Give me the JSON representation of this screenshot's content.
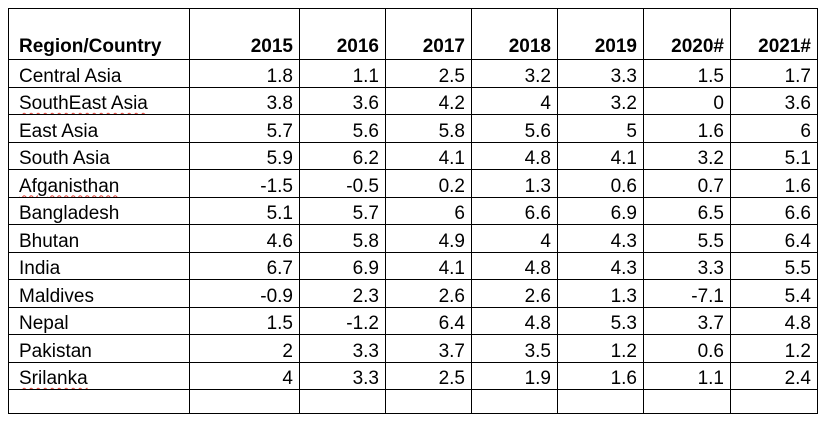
{
  "table": {
    "headers": [
      "Region/Country",
      "2015",
      "2016",
      "2017",
      "2018",
      "2019",
      "2020#",
      "2021#"
    ],
    "rows": [
      {
        "name": "Central Asia",
        "values": [
          "1.8",
          "1.1",
          "2.5",
          "3.2",
          "3.3",
          "1.5",
          "1.7"
        ]
      },
      {
        "name": "SouthEast Asia",
        "values": [
          "3.8",
          "3.6",
          "4.2",
          "4",
          "3.2",
          "0",
          "3.6"
        ]
      },
      {
        "name": "East Asia",
        "values": [
          "5.7",
          "5.6",
          "5.8",
          "5.6",
          "5",
          "1.6",
          "6"
        ]
      },
      {
        "name": "South Asia",
        "values": [
          "5.9",
          "6.2",
          "4.1",
          "4.8",
          "4.1",
          "3.2",
          "5.1"
        ]
      },
      {
        "name": "Afganisthan",
        "values": [
          "-1.5",
          "-0.5",
          "0.2",
          "1.3",
          "0.6",
          "0.7",
          "1.6"
        ]
      },
      {
        "name": "Bangladesh",
        "values": [
          "5.1",
          "5.7",
          "6",
          "6.6",
          "6.9",
          "6.5",
          "6.6"
        ]
      },
      {
        "name": "Bhutan",
        "values": [
          "4.6",
          "5.8",
          "4.9",
          "4",
          "4.3",
          "5.5",
          "6.4"
        ]
      },
      {
        "name": "India",
        "values": [
          "6.7",
          "6.9",
          "4.1",
          "4.8",
          "4.3",
          "3.3",
          "5.5"
        ]
      },
      {
        "name": "Maldives",
        "values": [
          "-0.9",
          "2.3",
          "2.6",
          "2.6",
          "1.3",
          "-7.1",
          "5.4"
        ]
      },
      {
        "name": "Nepal",
        "values": [
          "1.5",
          "-1.2",
          "6.4",
          "4.8",
          "5.3",
          "3.7",
          "4.8"
        ]
      },
      {
        "name": "Pakistan",
        "values": [
          "2",
          "3.3",
          "3.7",
          "3.5",
          "1.2",
          "0.6",
          "1.2"
        ]
      },
      {
        "name": "Srilanka",
        "values": [
          "4",
          "3.3",
          "2.5",
          "1.9",
          "1.6",
          "1.1",
          "2.4"
        ]
      }
    ],
    "spellcheck_flagged": [
      "SouthEast",
      "Afganisthan",
      "Srilanka"
    ],
    "colors": {
      "border": "#000000",
      "text": "#000000",
      "spellcheck_underline": "#e0443a"
    }
  }
}
